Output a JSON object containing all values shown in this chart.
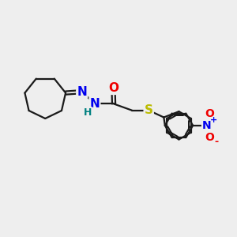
{
  "background_color": "#eeeeee",
  "bond_color": "#1a1a1a",
  "atom_colors": {
    "N": "#0000ee",
    "O": "#ee0000",
    "S": "#bbbb00",
    "H": "#008080",
    "C": "#1a1a1a"
  },
  "font_size": 10,
  "bond_width": 1.6,
  "figsize": [
    3.0,
    3.0
  ],
  "dpi": 100,
  "xlim": [
    0,
    10
  ],
  "ylim": [
    0,
    10
  ]
}
